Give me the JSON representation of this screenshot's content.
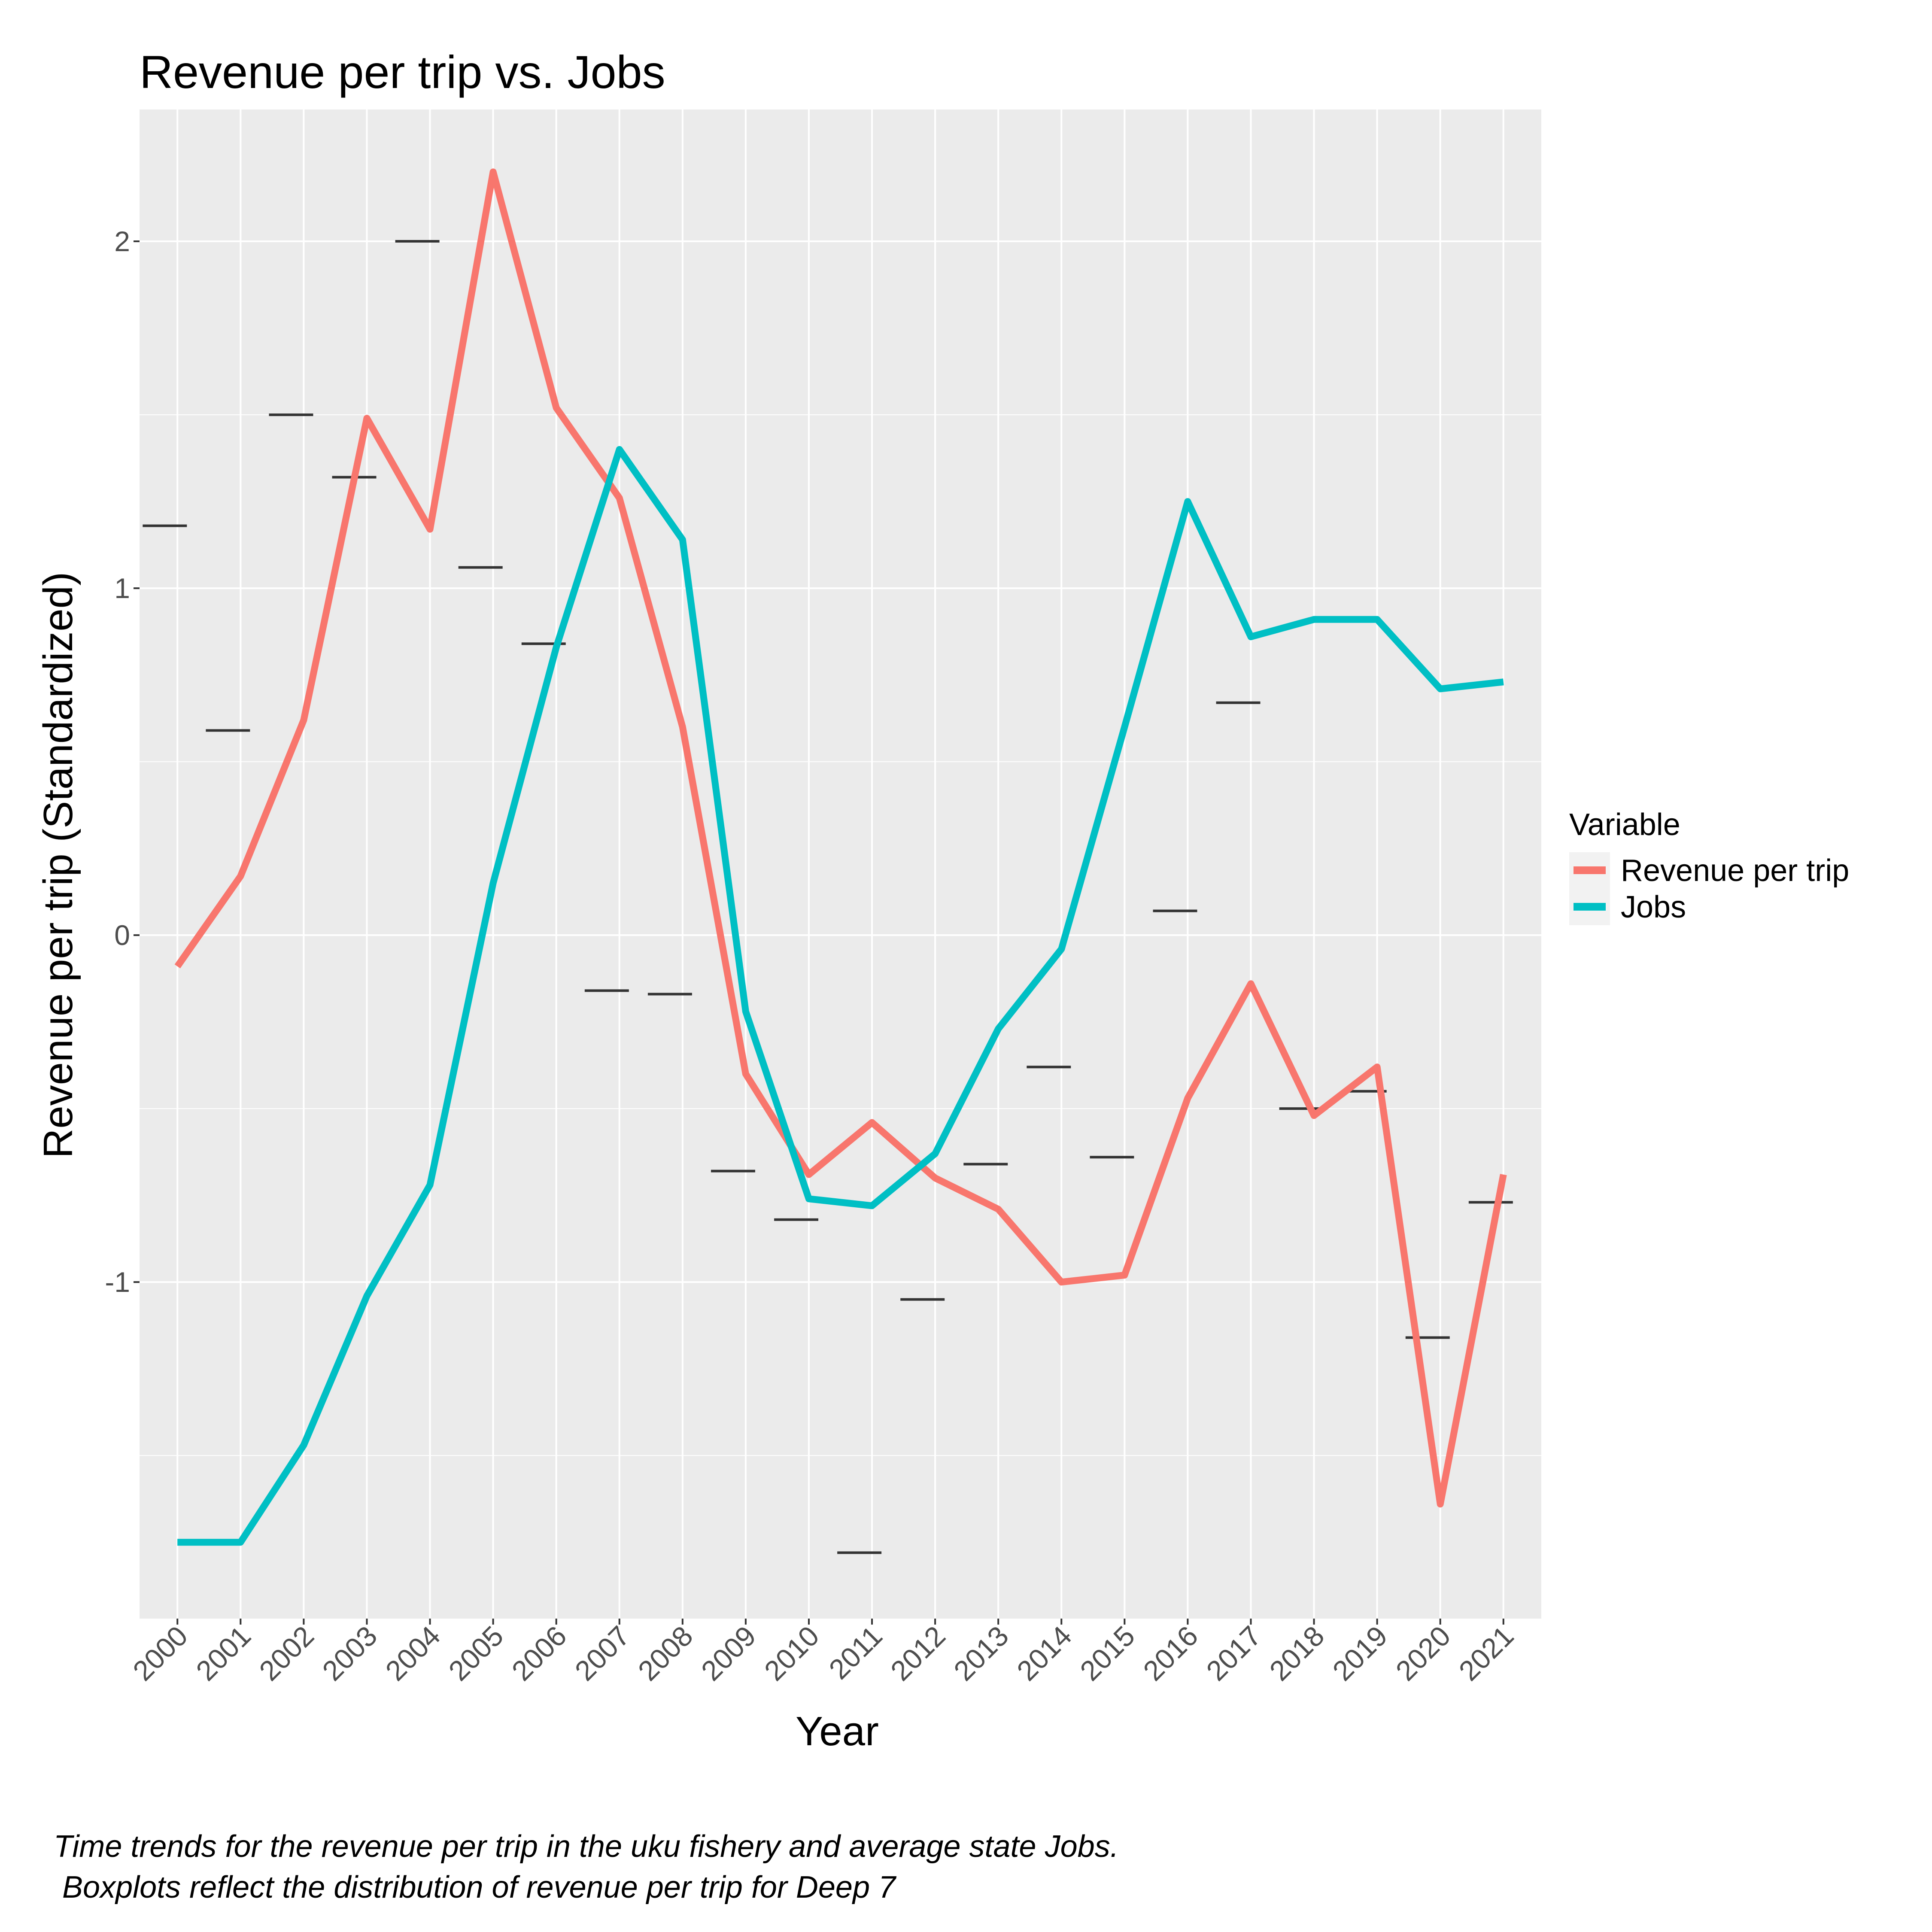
{
  "chart_data": {
    "type": "line",
    "title": "Revenue per trip vs. Jobs",
    "xlabel": "Year",
    "ylabel": "Revenue per trip (Standardized)",
    "categories": [
      "2000",
      "2001",
      "2002",
      "2003",
      "2004",
      "2005",
      "2006",
      "2007",
      "2008",
      "2009",
      "2010",
      "2011",
      "2012",
      "2013",
      "2014",
      "2015",
      "2016",
      "2017",
      "2018",
      "2019",
      "2020",
      "2021"
    ],
    "yticks": [
      "-1",
      "0",
      "1",
      "2"
    ],
    "ylim": [
      -1.97,
      2.38
    ],
    "grid": true,
    "legend": {
      "title": "Variable",
      "position": "right"
    },
    "series": [
      {
        "name": "Revenue per trip",
        "color": "#F8766D",
        "values": [
          -0.09,
          0.17,
          0.62,
          1.49,
          1.17,
          2.2,
          1.52,
          1.26,
          0.6,
          -0.4,
          -0.69,
          -0.54,
          -0.7,
          -0.79,
          -1.0,
          -0.98,
          -0.47,
          -0.14,
          -0.52,
          -0.38,
          -1.64,
          -0.69
        ]
      },
      {
        "name": "Jobs",
        "color": "#00BFC4",
        "values": [
          -1.75,
          -1.75,
          -1.47,
          -1.04,
          -0.72,
          0.15,
          0.83,
          1.4,
          1.14,
          -0.22,
          -0.76,
          -0.78,
          -0.63,
          -0.27,
          -0.04,
          0.6,
          1.25,
          0.86,
          0.91,
          0.91,
          0.71,
          0.73
        ]
      }
    ],
    "boxplot_medians": [
      1.18,
      0.59,
      1.5,
      1.32,
      2.0,
      1.06,
      0.84,
      -0.16,
      -0.17,
      -0.68,
      -0.82,
      -1.78,
      -1.05,
      -0.66,
      -0.38,
      -0.64,
      0.07,
      0.67,
      -0.5,
      -0.45,
      -1.16,
      -0.77
    ]
  },
  "caption": {
    "line1": "Time trends for the revenue per trip in the uku fishery and average state Jobs.",
    "line2": " Boxplots reflect the distribution of revenue per trip for Deep 7"
  },
  "colors": {
    "panel": "#EBEBEB",
    "grid": "#FFFFFF",
    "boxplot": "#333333"
  }
}
